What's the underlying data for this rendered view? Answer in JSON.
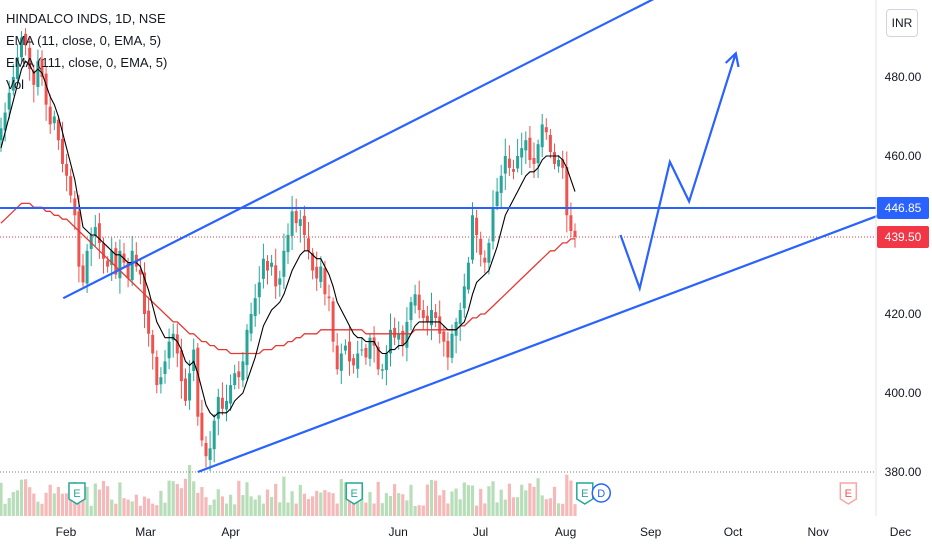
{
  "legend": {
    "symbol_line": "HINDALCO INDS, 1D, NSE",
    "ema1": "EMA (11, close, 0, EMA, 5)",
    "ema2": "EMA (111, close, 0, EMA, 5)",
    "vol": "Vol"
  },
  "currency_button": "INR",
  "last_price": "439.50",
  "level_price": "446.85",
  "colors": {
    "up": "#26a69a",
    "down": "#ef5350",
    "channel": "#2962ff",
    "ema_fast": "#000000",
    "ema_slow": "#e53935",
    "last_price": "#f23645",
    "level": "#2962ff",
    "vol_up": "#a5d6a7",
    "vol_down": "#f4a8a8"
  },
  "chart_data": {
    "type": "candlestick",
    "title": "HINDALCO INDS, 1D, NSE",
    "ylim": [
      372,
      506
    ],
    "y_ticks": [
      "380.00",
      "400.00",
      "420.00",
      "440.00",
      "460.00",
      "480.00"
    ],
    "x_ticks": [
      "Feb",
      "Mar",
      "Apr",
      "Jun",
      "Jul",
      "Aug",
      "Sep",
      "Oct",
      "Nov",
      "Dec"
    ],
    "grid": false,
    "horizontal_level": 446.85,
    "last_close": 439.5,
    "closes": [
      467,
      471,
      476,
      480,
      485,
      490,
      488,
      482,
      478,
      484,
      480,
      473,
      468,
      470,
      464,
      458,
      455,
      450,
      445,
      432,
      428,
      436,
      440,
      442,
      438,
      434,
      432,
      436,
      430,
      436,
      433,
      429,
      436,
      432,
      430,
      420,
      415,
      410,
      402,
      404,
      408,
      413,
      415,
      410,
      403,
      398,
      405,
      411,
      394,
      388,
      384,
      386,
      393,
      399,
      396,
      398,
      402,
      405,
      404,
      408,
      416,
      420,
      424,
      428,
      434,
      431,
      433,
      427,
      429,
      436,
      440,
      446,
      443,
      444,
      440,
      436,
      431,
      429,
      432,
      425,
      424,
      413,
      406,
      410,
      412,
      408,
      407,
      410,
      411,
      409,
      414,
      412,
      406,
      406,
      410,
      416,
      414,
      415,
      412,
      418,
      423,
      425,
      421,
      419,
      418,
      421,
      419,
      415,
      413,
      409,
      415,
      418,
      421,
      427,
      433,
      445,
      440,
      435,
      433,
      438,
      447,
      451,
      455,
      460,
      457,
      456,
      460,
      462,
      464,
      459,
      458,
      463,
      468,
      466,
      461,
      458,
      459,
      457,
      445,
      441,
      439.5
    ],
    "ema_fast": [
      462,
      466,
      470,
      474,
      478,
      482,
      484,
      483,
      481,
      482,
      481,
      478,
      475,
      473,
      470,
      466,
      462,
      458,
      454,
      448,
      442,
      441,
      440,
      440,
      439,
      438,
      437,
      436,
      435,
      435,
      434,
      433,
      433,
      433,
      432,
      429,
      426,
      422,
      418,
      416,
      414,
      414,
      414,
      413,
      411,
      408,
      407,
      408,
      405,
      401,
      397,
      395,
      394,
      395,
      395,
      395,
      396,
      398,
      399,
      400,
      403,
      406,
      409,
      413,
      417,
      419,
      421,
      422,
      423,
      425,
      428,
      431,
      433,
      435,
      436,
      436,
      435,
      434,
      434,
      432,
      430,
      427,
      423,
      421,
      419,
      417,
      415,
      414,
      414,
      413,
      413,
      413,
      411,
      410,
      410,
      411,
      411,
      412,
      412,
      413,
      415,
      417,
      418,
      418,
      418,
      418,
      418,
      418,
      417,
      416,
      416,
      416,
      417,
      418,
      421,
      425,
      428,
      429,
      430,
      431,
      434,
      437,
      441,
      445,
      447,
      449,
      451,
      453,
      455,
      456,
      456,
      457,
      459,
      460,
      460,
      460,
      460,
      459,
      457,
      454,
      451
    ],
    "ema_slow": [
      443,
      444,
      445,
      446,
      447,
      448,
      448,
      448,
      447,
      447,
      447,
      446,
      446,
      445,
      445,
      444,
      444,
      443,
      442,
      441,
      440,
      439,
      438,
      437,
      436,
      435,
      434,
      433,
      432,
      431,
      430,
      429,
      428,
      427,
      426,
      425,
      424,
      423,
      422,
      421,
      420,
      419,
      418,
      418,
      417,
      416,
      415,
      415,
      414,
      413,
      413,
      412,
      412,
      411,
      411,
      411,
      410,
      410,
      410,
      410,
      410,
      410,
      410,
      410,
      411,
      411,
      411,
      412,
      412,
      412,
      413,
      413,
      414,
      414,
      415,
      415,
      415,
      415,
      416,
      416,
      416,
      416,
      416,
      416,
      416,
      416,
      416,
      416,
      416,
      415,
      415,
      415,
      415,
      415,
      415,
      415,
      415,
      415,
      415,
      415,
      415,
      416,
      416,
      416,
      416,
      416,
      416,
      416,
      416,
      416,
      416,
      416,
      417,
      417,
      418,
      419,
      419,
      420,
      420,
      421,
      422,
      423,
      424,
      425,
      426,
      427,
      428,
      429,
      430,
      431,
      432,
      433,
      434,
      435,
      436,
      436,
      437,
      438,
      438,
      439,
      439
    ],
    "channel_lines": [
      {
        "from": [
          "2024-01-31",
          424.0
        ],
        "to": [
          "2024-09-17",
          505.0
        ]
      },
      {
        "from": [
          "2024-03-20",
          380.0
        ],
        "to": [
          "2024-11-27",
          446.0
        ]
      }
    ],
    "projection_path": [
      [
        "2024-08-21",
        440.0
      ],
      [
        "2024-08-28",
        426.5
      ],
      [
        "2024-09-08",
        458.5
      ],
      [
        "2024-09-15",
        448.5
      ],
      [
        "2024-10-02",
        486.0
      ]
    ],
    "event_markers": [
      {
        "label": "E",
        "date": "2024-02-05"
      },
      {
        "label": "E",
        "date": "2024-05-16"
      },
      {
        "label": "E",
        "date": "2024-08-08"
      },
      {
        "label": "D",
        "date": "2024-08-14"
      },
      {
        "label": "E",
        "date": "2024-11-12"
      }
    ]
  }
}
